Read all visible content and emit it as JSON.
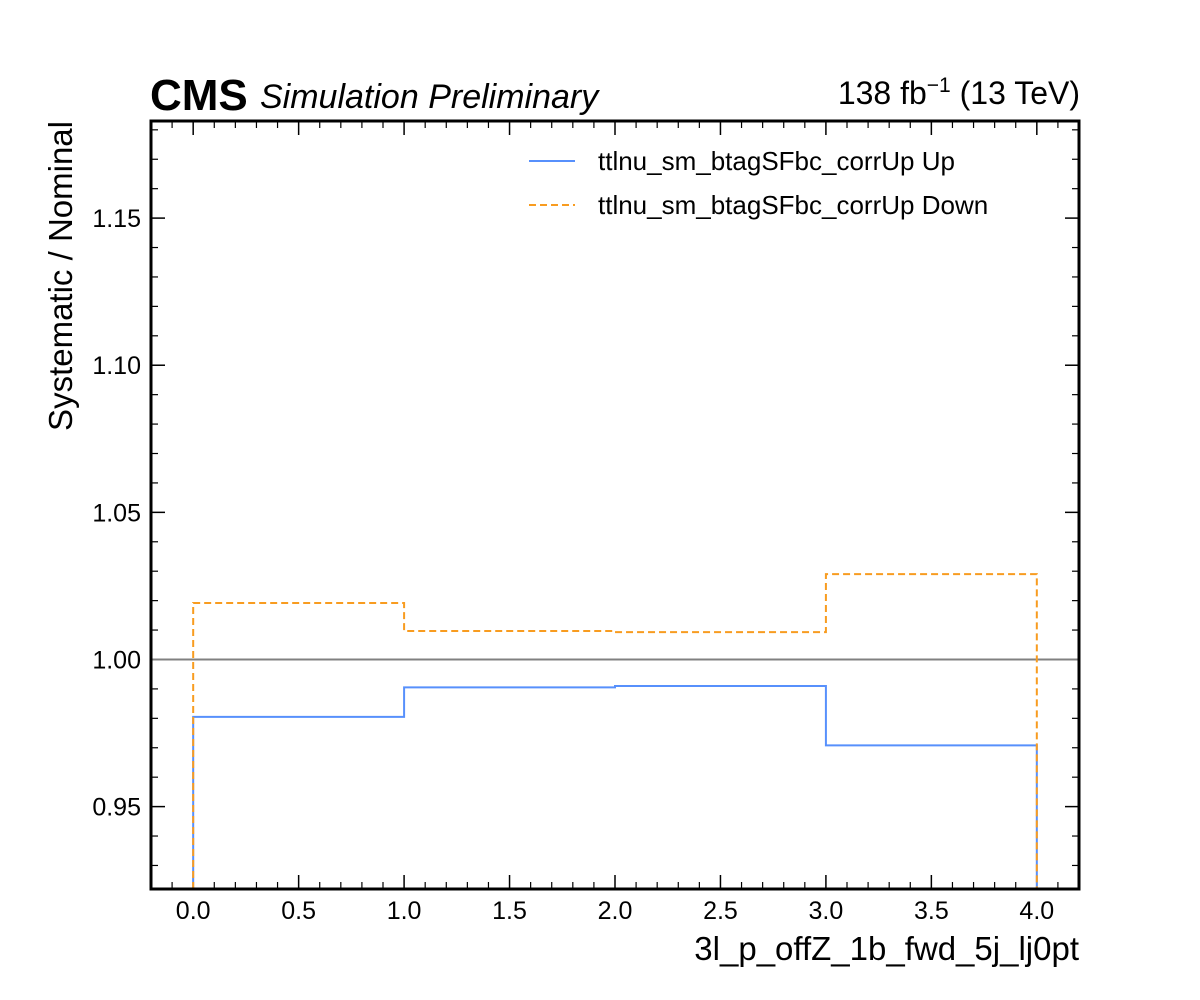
{
  "header": {
    "experiment": "CMS",
    "status": "Simulation Preliminary",
    "lumi_value": "138 fb",
    "lumi_exp": "−1",
    "lumi_energy": " (13 TeV)"
  },
  "chart_data": {
    "type": "line",
    "drawstyle": "step",
    "xlabel": "3l_p_offZ_1b_fwd_5j_lj0pt",
    "ylabel": "Systematic / Nominal",
    "xlim": [
      -0.2,
      4.2
    ],
    "ylim": [
      0.922,
      1.183
    ],
    "x_ticks": [
      0.0,
      0.5,
      1.0,
      1.5,
      2.0,
      2.5,
      3.0,
      3.5,
      4.0
    ],
    "x_tick_labels": [
      "0.0",
      "0.5",
      "1.0",
      "1.5",
      "2.0",
      "2.5",
      "3.0",
      "3.5",
      "4.0"
    ],
    "y_ticks": [
      0.95,
      1.0,
      1.05,
      1.1,
      1.15
    ],
    "y_tick_labels": [
      "0.95",
      "1.00",
      "1.05",
      "1.10",
      "1.15"
    ],
    "bin_edges": [
      0,
      1,
      2,
      3,
      4
    ],
    "reference_line": {
      "y": 1.0,
      "color": "#808080"
    },
    "legend_position": "top-right",
    "series": [
      {
        "name": "ttlnu_sm_btagSFbc_corrUp Up",
        "values": [
          0.9805,
          0.9905,
          0.991,
          0.9708
        ],
        "color": "#5790fc",
        "style": "solid"
      },
      {
        "name": "ttlnu_sm_btagSFbc_corrUp Down",
        "values": [
          1.0192,
          1.0097,
          1.0093,
          1.029
        ],
        "color": "#f89c20",
        "style": "dashed"
      }
    ]
  }
}
